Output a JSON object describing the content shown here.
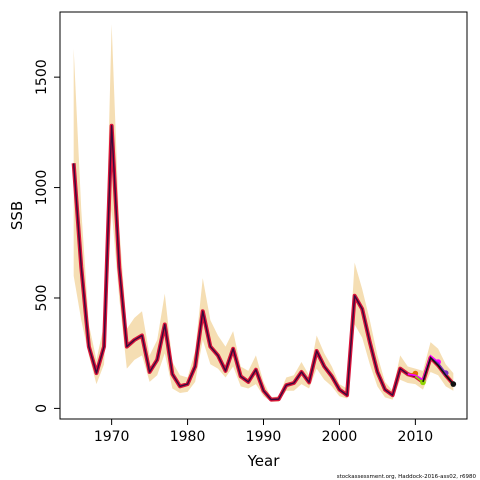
{
  "chart_data": {
    "type": "line",
    "xlabel": "Year",
    "ylabel": "SSB",
    "xlim": [
      1963.2,
      2016.8
    ],
    "ylim": [
      -48,
      1795
    ],
    "x_ticks": [
      1970,
      1980,
      1990,
      2000,
      2010
    ],
    "x_tick_labels": [
      "1970",
      "1980",
      "1990",
      "2000",
      "2010"
    ],
    "y_ticks": [
      0,
      500,
      1000,
      1500
    ],
    "y_tick_labels": [
      "0",
      "500",
      "1000",
      "1500"
    ],
    "grid": false,
    "legend": "none",
    "source_note": "stockassessment.org, Haddock-2016-ass02, r6980",
    "colors": {
      "band": "#f5deb3",
      "series_main": "#d8143c",
      "series_dark": "#3a0a3a",
      "retro_1": "#ff00ff",
      "retro_2": "#8fd400",
      "retro_3": "#7b2cbf",
      "retro_4": "#e07000",
      "retro_5": "#111111"
    },
    "band": {
      "x": [
        1965,
        1966,
        1967,
        1968,
        1969,
        1970,
        1971,
        1972,
        1973,
        1974,
        1975,
        1976,
        1977,
        1978,
        1979,
        1980,
        1981,
        1982,
        1983,
        1984,
        1985,
        1986,
        1987,
        1988,
        1989,
        1990,
        1991,
        1992,
        1993,
        1994,
        1995,
        1996,
        1997,
        1998,
        1999,
        2000,
        2001,
        2002,
        2003,
        2004,
        2005,
        2006,
        2007,
        2008,
        2009,
        2010,
        2011,
        2012,
        2013,
        2014,
        2015
      ],
      "lower": [
        600,
        400,
        240,
        110,
        200,
        900,
        500,
        180,
        220,
        240,
        120,
        150,
        250,
        90,
        70,
        75,
        120,
        310,
        200,
        180,
        140,
        190,
        100,
        90,
        110,
        55,
        30,
        30,
        80,
        80,
        110,
        90,
        180,
        130,
        100,
        55,
        45,
        380,
        320,
        200,
        100,
        50,
        40,
        130,
        115,
        110,
        85,
        165,
        150,
        100,
        80
      ],
      "upper": [
        1630,
        900,
        380,
        220,
        380,
        1740,
        820,
        360,
        410,
        440,
        240,
        310,
        520,
        210,
        150,
        140,
        260,
        590,
        400,
        330,
        280,
        350,
        190,
        170,
        240,
        120,
        50,
        55,
        140,
        150,
        210,
        150,
        330,
        250,
        190,
        110,
        90,
        660,
        540,
        400,
        240,
        120,
        80,
        240,
        190,
        180,
        170,
        300,
        270,
        200,
        160
      ]
    },
    "series": [
      {
        "x": [
          1965,
          1966,
          1967,
          1968,
          1969,
          1970,
          1971,
          1972,
          1973,
          1974,
          1975,
          1976,
          1977,
          1978,
          1979,
          1980,
          1981,
          1982,
          1983,
          1984,
          1985,
          1986,
          1987,
          1988,
          1989,
          1990,
          1991,
          1992,
          1993,
          1994,
          1995,
          1996,
          1997,
          1998,
          1999,
          2000,
          2001,
          2002,
          2003,
          2004,
          2005,
          2006,
          2007,
          2008,
          2009,
          2010,
          2011,
          2012,
          2013,
          2014,
          2015
        ],
        "values": [
          1110,
          640,
          280,
          160,
          280,
          1280,
          640,
          280,
          310,
          330,
          165,
          220,
          380,
          155,
          100,
          110,
          190,
          440,
          280,
          240,
          170,
          270,
          145,
          120,
          175,
          80,
          40,
          42,
          105,
          115,
          165,
          118,
          260,
          190,
          145,
          85,
          60,
          510,
          450,
          300,
          165,
          85,
          60,
          180,
          155,
          145,
          120,
          230,
          195,
          150,
          110
        ]
      }
    ],
    "retro_lines": [
      {
        "x": [
          2009,
          2010
        ],
        "values": [
          155,
          158
        ]
      },
      {
        "x": [
          2009,
          2010,
          2011,
          2012,
          2013
        ],
        "values": [
          155,
          150,
          130,
          238,
          210
        ]
      },
      {
        "x": [
          2010,
          2011,
          2012,
          2013,
          2014
        ],
        "values": [
          145,
          122,
          228,
          205,
          160
        ]
      },
      {
        "x": [
          2010,
          2011
        ],
        "values": [
          145,
          118
        ]
      },
      {
        "x": [
          2011,
          2012,
          2013,
          2014,
          2015
        ],
        "values": [
          120,
          230,
          195,
          150,
          110
        ]
      }
    ]
  }
}
